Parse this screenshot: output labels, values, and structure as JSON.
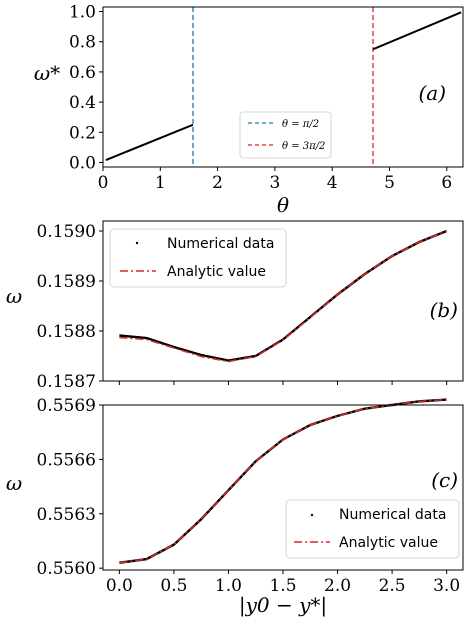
{
  "chart_data": [
    {
      "panel": "(a)",
      "type": "line",
      "xlabel": "θ",
      "ylabel": "ω*",
      "xlim": [
        0,
        6.283
      ],
      "ylim": [
        -0.03,
        1.03
      ],
      "xticks": [
        0,
        1,
        2,
        3,
        4,
        5,
        6
      ],
      "xtick_labels": [
        "0",
        "1",
        "2",
        "3",
        "4",
        "5",
        "6"
      ],
      "yticks": [
        0,
        0.2,
        0.4,
        0.6,
        0.8,
        1.0
      ],
      "ytick_labels": [
        "0.0",
        "0.2",
        "0.4",
        "0.6",
        "0.8",
        "1.0"
      ],
      "series": [
        {
          "name": "",
          "color": "#000000",
          "style": "solid",
          "x": [
            0.05,
            1.5708
          ],
          "y": [
            0.016,
            0.25
          ]
        },
        {
          "name": "",
          "color": "#000000",
          "style": "solid",
          "x": [
            4.7124,
            6.25
          ],
          "y": [
            0.75,
            0.995
          ]
        }
      ],
      "vlines": [
        {
          "x": 1.5708,
          "color": "#1f77b4",
          "label": "θ = π/2"
        },
        {
          "x": 4.7124,
          "color": "#d62728",
          "label": "θ = 3π/2"
        }
      ],
      "legend": "lower-center",
      "grid": false
    },
    {
      "panel": "(b)",
      "type": "line",
      "xlabel": "",
      "ylabel": "ω",
      "xlim": [
        -0.15,
        3.15
      ],
      "ylim": [
        0.1587,
        0.15902
      ],
      "xticks": [
        0,
        0.5,
        1.0,
        1.5,
        2.0,
        2.5,
        3.0
      ],
      "yticks": [
        0.1587,
        0.1588,
        0.1589,
        0.159
      ],
      "ytick_labels": [
        "0.1587",
        "0.1588",
        "0.1589",
        "0.1590"
      ],
      "x": [
        0,
        0.25,
        0.5,
        0.75,
        1.0,
        1.25,
        1.5,
        1.75,
        2.0,
        2.25,
        2.5,
        2.75,
        3.0
      ],
      "series": [
        {
          "name": "Numerical data",
          "color": "#000000",
          "style": "dotted",
          "y": [
            0.158791,
            0.158786,
            0.158768,
            0.158752,
            0.158741,
            0.15875,
            0.158783,
            0.158828,
            0.158873,
            0.158914,
            0.15895,
            0.158978,
            0.159
          ]
        },
        {
          "name": "Analytic value",
          "color": "#d62728",
          "style": "dashdot",
          "y": [
            0.158787,
            0.158783,
            0.158766,
            0.158749,
            0.158739,
            0.158749,
            0.158782,
            0.158827,
            0.158873,
            0.158914,
            0.15895,
            0.158978,
            0.159
          ]
        }
      ],
      "legend": "top-left",
      "grid": false
    },
    {
      "panel": "(c)",
      "type": "line",
      "xlabel": "|y0 − y*|",
      "ylabel": "ω",
      "xlim": [
        -0.15,
        3.15
      ],
      "ylim": [
        0.55599,
        0.5569
      ],
      "xticks": [
        0,
        0.5,
        1.0,
        1.5,
        2.0,
        2.5,
        3.0
      ],
      "xtick_labels": [
        "0.0",
        "0.5",
        "1.0",
        "1.5",
        "2.0",
        "2.5",
        "3.0"
      ],
      "yticks": [
        0.556,
        0.5563,
        0.5566,
        0.5569
      ],
      "ytick_labels": [
        "0.5560",
        "0.5563",
        "0.5566",
        "0.5569"
      ],
      "x": [
        0,
        0.25,
        0.5,
        0.75,
        1.0,
        1.25,
        1.5,
        1.75,
        2.0,
        2.25,
        2.5,
        2.75,
        3.0
      ],
      "series": [
        {
          "name": "Numerical data",
          "color": "#000000",
          "style": "dotted",
          "y": [
            0.55603,
            0.55605,
            0.55613,
            0.55627,
            0.55643,
            0.55659,
            0.55671,
            0.55679,
            0.55684,
            0.55688,
            0.5569,
            0.55692,
            0.55693
          ]
        },
        {
          "name": "Analytic value",
          "color": "#d62728",
          "style": "dashdot",
          "y": [
            0.55603,
            0.55605,
            0.55613,
            0.55627,
            0.55643,
            0.55659,
            0.55671,
            0.55679,
            0.55684,
            0.55688,
            0.5569,
            0.55692,
            0.55693
          ]
        }
      ],
      "legend": "lower-right",
      "grid": false
    }
  ]
}
